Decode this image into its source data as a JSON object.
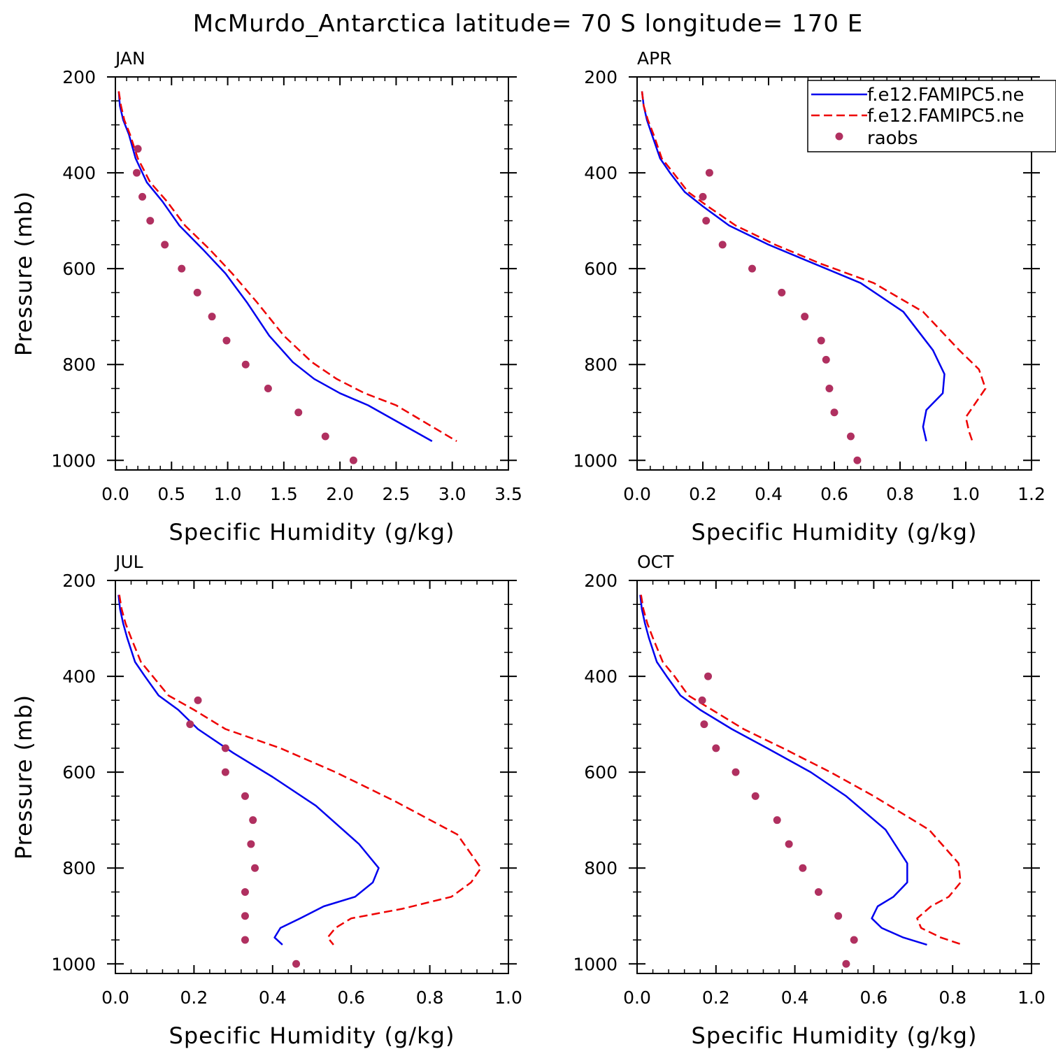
{
  "figure": {
    "title": "McMurdo_Antarctica  latitude= 70 S longitude= 170 E"
  },
  "colors": {
    "model1": "#0000ee",
    "model2": "#ee0000",
    "raobs": "#b03060",
    "axis": "#000000"
  },
  "legend": {
    "entries": [
      "f.e12.FAMIPC5.ne",
      "f.e12.FAMIPC5.ne",
      "raobs"
    ]
  },
  "chart_data": [
    {
      "type": "line",
      "title": "JAN",
      "xlabel": "Specific Humidity (g/kg)",
      "ylabel": "Pressure (mb)",
      "xlim": [
        0,
        3.5
      ],
      "ylim": [
        200,
        1020
      ],
      "xticks": [
        0,
        0.5,
        1.0,
        1.5,
        2.0,
        2.5,
        3.0,
        3.5
      ],
      "xtick_labels": [
        "0.0",
        "0.5",
        "1.0",
        "1.5",
        "2.0",
        "2.5",
        "3.0",
        "3.5"
      ],
      "yticks": [
        200,
        400,
        600,
        800,
        1000
      ],
      "ytick_labels": [
        "200",
        "400",
        "600",
        "800",
        "1000"
      ],
      "series": [
        {
          "name": "f.e12.FAMIPC5.ne",
          "style": "solid",
          "x": [
            0.03,
            0.04,
            0.07,
            0.12,
            0.18,
            0.28,
            0.42,
            0.57,
            0.78,
            0.98,
            1.17,
            1.37,
            1.58,
            1.77,
            2.0,
            2.25,
            2.82
          ],
          "y": [
            230,
            260,
            290,
            320,
            370,
            420,
            460,
            510,
            560,
            610,
            670,
            740,
            795,
            830,
            860,
            885,
            960
          ]
        },
        {
          "name": "f.e12.FAMIPC5.ne",
          "style": "dashed",
          "x": [
            0.03,
            0.05,
            0.08,
            0.13,
            0.2,
            0.31,
            0.46,
            0.62,
            0.84,
            1.04,
            1.26,
            1.5,
            1.75,
            1.97,
            2.22,
            2.5,
            3.04
          ],
          "y": [
            230,
            260,
            290,
            320,
            370,
            420,
            460,
            510,
            560,
            610,
            670,
            740,
            795,
            830,
            860,
            885,
            960
          ]
        },
        {
          "name": "raobs",
          "style": "markers",
          "x": [
            0.2,
            0.19,
            0.24,
            0.31,
            0.44,
            0.59,
            0.73,
            0.86,
            0.99,
            1.16,
            1.36,
            1.63,
            1.87,
            2.12
          ],
          "y": [
            350,
            400,
            450,
            500,
            550,
            600,
            650,
            700,
            750,
            800,
            850,
            900,
            950,
            1000
          ]
        }
      ]
    },
    {
      "type": "line",
      "title": "APR",
      "xlabel": "Specific Humidity (g/kg)",
      "ylabel": "",
      "xlim": [
        0,
        1.2
      ],
      "ylim": [
        200,
        1020
      ],
      "xticks": [
        0,
        0.2,
        0.4,
        0.6,
        0.8,
        1.0,
        1.2
      ],
      "xtick_labels": [
        "0.0",
        "0.2",
        "0.4",
        "0.6",
        "0.8",
        "1.0",
        "1.2"
      ],
      "yticks": [
        200,
        400,
        600,
        800,
        1000
      ],
      "ytick_labels": [
        "200",
        "400",
        "600",
        "800",
        "1000"
      ],
      "legend": true,
      "series": [
        {
          "name": "f.e12.FAMIPC5.ne",
          "style": "solid",
          "x": [
            0.015,
            0.02,
            0.03,
            0.045,
            0.07,
            0.1,
            0.145,
            0.2,
            0.28,
            0.4,
            0.54,
            0.68,
            0.81,
            0.9,
            0.935,
            0.93,
            0.88,
            0.87,
            0.88
          ],
          "y": [
            230,
            260,
            290,
            320,
            370,
            400,
            440,
            470,
            510,
            550,
            590,
            630,
            690,
            770,
            820,
            860,
            895,
            930,
            960
          ]
        },
        {
          "name": "f.e12.FAMIPC5.ne",
          "style": "dashed",
          "x": [
            0.015,
            0.02,
            0.033,
            0.05,
            0.075,
            0.11,
            0.155,
            0.215,
            0.3,
            0.42,
            0.56,
            0.72,
            0.87,
            0.98,
            1.04,
            1.06,
            1.03,
            1.0,
            1.01,
            1.02
          ],
          "y": [
            230,
            260,
            290,
            320,
            370,
            400,
            440,
            470,
            510,
            550,
            590,
            630,
            690,
            770,
            810,
            850,
            880,
            910,
            940,
            960
          ]
        },
        {
          "name": "raobs",
          "style": "markers",
          "x": [
            0.22,
            0.2,
            0.21,
            0.26,
            0.35,
            0.44,
            0.51,
            0.56,
            0.575,
            0.585,
            0.6,
            0.65,
            0.67
          ],
          "y": [
            400,
            450,
            500,
            550,
            600,
            650,
            700,
            750,
            790,
            850,
            900,
            950,
            1000
          ]
        }
      ]
    },
    {
      "type": "line",
      "title": "JUL",
      "xlabel": "Specific Humidity (g/kg)",
      "ylabel": "Pressure (mb)",
      "xlim": [
        0,
        1.0
      ],
      "ylim": [
        200,
        1020
      ],
      "xticks": [
        0,
        0.2,
        0.4,
        0.6,
        0.8,
        1.0
      ],
      "xtick_labels": [
        "0.0",
        "0.2",
        "0.4",
        "0.6",
        "0.8",
        "1.0"
      ],
      "yticks": [
        200,
        400,
        600,
        800,
        1000
      ],
      "ytick_labels": [
        "200",
        "400",
        "600",
        "800",
        "1000"
      ],
      "series": [
        {
          "name": "f.e12.FAMIPC5.ne",
          "style": "solid",
          "x": [
            0.008,
            0.012,
            0.02,
            0.03,
            0.05,
            0.075,
            0.11,
            0.16,
            0.21,
            0.3,
            0.4,
            0.51,
            0.62,
            0.67,
            0.655,
            0.61,
            0.53,
            0.47,
            0.42,
            0.405,
            0.425
          ],
          "y": [
            230,
            260,
            290,
            320,
            370,
            400,
            440,
            470,
            510,
            560,
            610,
            670,
            750,
            800,
            830,
            860,
            880,
            905,
            925,
            945,
            960
          ]
        },
        {
          "name": "f.e12.FAMIPC5.ne",
          "style": "dashed",
          "x": [
            0.01,
            0.016,
            0.026,
            0.04,
            0.065,
            0.095,
            0.135,
            0.2,
            0.28,
            0.42,
            0.56,
            0.71,
            0.87,
            0.93,
            0.905,
            0.855,
            0.73,
            0.6,
            0.56,
            0.54,
            0.555
          ],
          "y": [
            230,
            260,
            290,
            320,
            370,
            400,
            440,
            470,
            510,
            550,
            600,
            660,
            730,
            800,
            830,
            860,
            885,
            905,
            925,
            945,
            960
          ]
        },
        {
          "name": "raobs",
          "style": "markers",
          "x": [
            0.21,
            0.19,
            0.28,
            0.28,
            0.33,
            0.35,
            0.345,
            0.355,
            0.33,
            0.33,
            0.33,
            0.46
          ],
          "y": [
            450,
            500,
            550,
            600,
            650,
            700,
            750,
            800,
            850,
            900,
            950,
            1000
          ]
        }
      ]
    },
    {
      "type": "line",
      "title": "OCT",
      "xlabel": "Specific Humidity (g/kg)",
      "ylabel": "",
      "xlim": [
        0,
        1.0
      ],
      "ylim": [
        200,
        1020
      ],
      "xticks": [
        0,
        0.2,
        0.4,
        0.6,
        0.8,
        1.0
      ],
      "xtick_labels": [
        "0.0",
        "0.2",
        "0.4",
        "0.6",
        "0.8",
        "1.0"
      ],
      "yticks": [
        200,
        400,
        600,
        800,
        1000
      ],
      "ytick_labels": [
        "200",
        "400",
        "600",
        "800",
        "1000"
      ],
      "series": [
        {
          "name": "f.e12.FAMIPC5.ne",
          "style": "solid",
          "x": [
            0.008,
            0.012,
            0.02,
            0.03,
            0.05,
            0.075,
            0.11,
            0.16,
            0.24,
            0.33,
            0.44,
            0.53,
            0.63,
            0.685,
            0.685,
            0.65,
            0.61,
            0.595,
            0.62,
            0.675,
            0.735
          ],
          "y": [
            230,
            260,
            290,
            320,
            370,
            400,
            440,
            470,
            510,
            550,
            600,
            650,
            720,
            790,
            830,
            860,
            880,
            905,
            925,
            945,
            960
          ]
        },
        {
          "name": "f.e12.FAMIPC5.ne",
          "style": "dashed",
          "x": [
            0.01,
            0.016,
            0.026,
            0.04,
            0.065,
            0.095,
            0.13,
            0.19,
            0.27,
            0.37,
            0.49,
            0.6,
            0.74,
            0.815,
            0.82,
            0.79,
            0.745,
            0.71,
            0.72,
            0.77,
            0.825
          ],
          "y": [
            230,
            260,
            290,
            320,
            370,
            400,
            440,
            470,
            510,
            550,
            600,
            650,
            720,
            790,
            830,
            860,
            880,
            905,
            925,
            945,
            960
          ]
        },
        {
          "name": "raobs",
          "style": "markers",
          "x": [
            0.18,
            0.165,
            0.17,
            0.2,
            0.25,
            0.3,
            0.355,
            0.385,
            0.42,
            0.46,
            0.51,
            0.55,
            0.53
          ],
          "y": [
            400,
            450,
            500,
            550,
            600,
            650,
            700,
            750,
            800,
            850,
            900,
            950,
            1000
          ]
        }
      ]
    }
  ]
}
